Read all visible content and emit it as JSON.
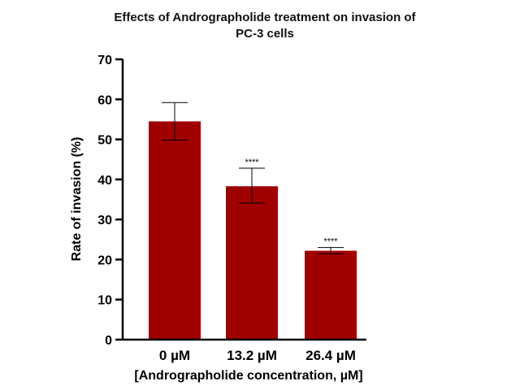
{
  "chart_data": {
    "type": "bar",
    "title": "Effects of Andrographolide treatment on invasion of PC-3 cells",
    "title_lines": [
      "Effects of Andrographolide treatment on invasion of",
      "PC-3 cells"
    ],
    "xlabel": "[Andrographolide concentration, µM]",
    "ylabel": "Rate of invasion (%)",
    "categories": [
      "0 µM",
      "13.2 µM",
      "26.4 µM"
    ],
    "values": [
      54.5,
      38.3,
      22.2
    ],
    "error_upper": [
      59.2,
      42.8,
      23.0
    ],
    "error_lower": [
      49.8,
      34.1,
      21.4
    ],
    "annotations": [
      "",
      "****",
      "****"
    ],
    "ylim": [
      0,
      70
    ],
    "yticks": [
      0,
      10,
      20,
      30,
      40,
      50,
      60,
      70
    ],
    "ytick_labels": [
      "0",
      "10",
      "20",
      "30",
      "40",
      "50",
      "60",
      "70"
    ],
    "grid": false,
    "bar_color": "#a00000",
    "error_bar_color": "#000000"
  }
}
